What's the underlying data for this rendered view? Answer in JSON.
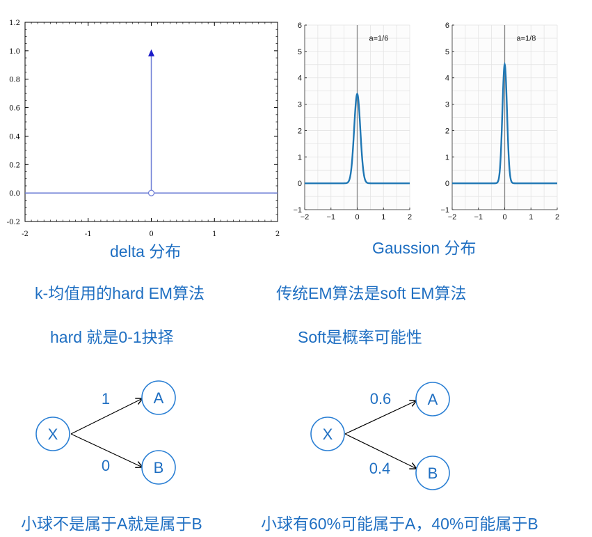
{
  "chart_data": [
    {
      "type": "line",
      "title": "",
      "xlim": [
        -2,
        2
      ],
      "ylim": [
        -0.2,
        1.2
      ],
      "x_ticks": [
        "-2",
        "-1",
        "0",
        "1",
        "2"
      ],
      "y_ticks": [
        "-0.2",
        "0.0",
        "0.2",
        "0.4",
        "0.6",
        "0.8",
        "1.0",
        "1.2"
      ],
      "series": [
        {
          "kind": "baseline",
          "x": [
            -2,
            2
          ],
          "y": [
            0,
            0
          ]
        },
        {
          "kind": "impulse",
          "x": [
            0,
            0
          ],
          "y": [
            0,
            1.0
          ]
        }
      ],
      "grid": false
    },
    {
      "type": "line",
      "annotation": "a=1/6",
      "a": 0.1666667,
      "peak": 3.39,
      "xlim": [
        -2,
        2
      ],
      "ylim": [
        -1,
        6
      ],
      "x_ticks": [
        "−2",
        "−1",
        "0",
        "1",
        "2"
      ],
      "y_ticks": [
        "−1",
        "0",
        "1",
        "2",
        "3",
        "4",
        "5",
        "6"
      ],
      "grid": true
    },
    {
      "type": "line",
      "annotation": "a=1/8",
      "a": 0.125,
      "peak": 4.51,
      "xlim": [
        -2,
        2
      ],
      "ylim": [
        -1,
        6
      ],
      "x_ticks": [
        "−2",
        "−1",
        "0",
        "1",
        "2"
      ],
      "y_ticks": [
        "−1",
        "0",
        "1",
        "2",
        "3",
        "4",
        "5",
        "6"
      ],
      "grid": true
    }
  ],
  "captions": {
    "delta": "delta 分布",
    "gaussion": "Gaussion 分布"
  },
  "left_text": {
    "line1": "k-均值用的hard EM算法",
    "line2": "hard 就是0-1抉择",
    "bottom": "小球不是属于A就是属于B"
  },
  "right_text": {
    "line1": "传统EM算法是soft EM算法",
    "line2": "Soft是概率可能性",
    "bottom": "小球有60%可能属于A，40%可能属于B"
  },
  "diagram_left": {
    "node_x": "X",
    "node_a": "A",
    "node_b": "B",
    "edge_a_label": "1",
    "edge_b_label": "0"
  },
  "diagram_right": {
    "node_x": "X",
    "node_a": "A",
    "node_b": "B",
    "edge_a_label": "0.6",
    "edge_b_label": "0.4"
  },
  "colors": {
    "text_blue": "#1f6fc2",
    "curve_blue": "#1f77b4",
    "delta_line": "#6f7fd6",
    "arrow_blue": "#1b1bc8",
    "node_stroke": "#2a7fd4"
  }
}
